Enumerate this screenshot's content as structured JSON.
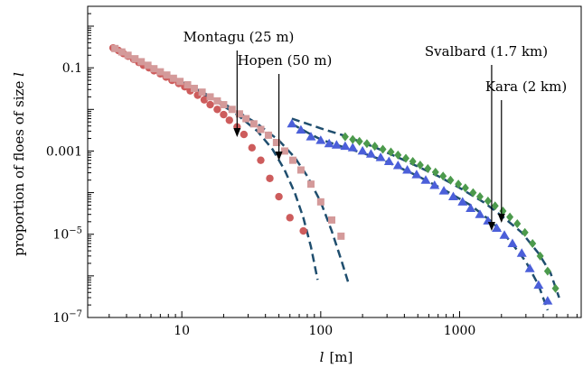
{
  "chart_data": {
    "type": "scatter",
    "xlabel_main": "l",
    "xlabel_unit": "[m]",
    "ylabel_main": "proportion of floes of size ",
    "ylabel_var": "l",
    "xscale": "log",
    "yscale": "log",
    "xlim": [
      2.1,
      7500
    ],
    "ylim": [
      1e-07,
      3
    ],
    "x_ticks": [
      {
        "value": 10,
        "label": "10"
      },
      {
        "value": 100,
        "label": "100"
      },
      {
        "value": 1000,
        "label": "1000"
      }
    ],
    "y_ticks": [
      {
        "value": 0.1,
        "label": "0.1"
      },
      {
        "value": 0.001,
        "label": "0.001"
      },
      {
        "value": 1e-05,
        "label": "10",
        "sup": "−5"
      },
      {
        "value": 1e-07,
        "label": "10",
        "sup": "−7"
      }
    ],
    "series": [
      {
        "name": "Montagu",
        "marker": "circle",
        "color": "#cd5c5c",
        "points": [
          [
            3.2,
            0.3
          ],
          [
            3.5,
            0.26
          ],
          [
            3.8,
            0.22
          ],
          [
            4.1,
            0.19
          ],
          [
            4.5,
            0.16
          ],
          [
            4.9,
            0.135
          ],
          [
            5.3,
            0.115
          ],
          [
            5.8,
            0.1
          ],
          [
            6.3,
            0.085
          ],
          [
            7,
            0.072
          ],
          [
            7.7,
            0.06
          ],
          [
            8.5,
            0.05
          ],
          [
            9.5,
            0.042
          ],
          [
            10.5,
            0.035
          ],
          [
            11.5,
            0.028
          ],
          [
            13,
            0.022
          ],
          [
            14.5,
            0.017
          ],
          [
            16,
            0.013
          ],
          [
            18,
            0.01
          ],
          [
            20,
            0.0075
          ],
          [
            22,
            0.0055
          ],
          [
            25,
            0.0038
          ],
          [
            28,
            0.0025
          ],
          [
            32,
            0.0012
          ],
          [
            37,
            0.0006
          ],
          [
            43,
            0.00022
          ],
          [
            50,
            8e-05
          ],
          [
            60,
            2.5e-05
          ],
          [
            75,
            1.2e-05
          ]
        ]
      },
      {
        "name": "Hopen",
        "marker": "square",
        "color": "#d49a9a",
        "points": [
          [
            3.3,
            0.29
          ],
          [
            3.7,
            0.24
          ],
          [
            4.1,
            0.2
          ],
          [
            4.6,
            0.165
          ],
          [
            5.1,
            0.14
          ],
          [
            5.7,
            0.115
          ],
          [
            6.3,
            0.095
          ],
          [
            7,
            0.08
          ],
          [
            7.8,
            0.067
          ],
          [
            8.7,
            0.056
          ],
          [
            9.7,
            0.047
          ],
          [
            11,
            0.039
          ],
          [
            12.3,
            0.032
          ],
          [
            14,
            0.026
          ],
          [
            16,
            0.02
          ],
          [
            18,
            0.016
          ],
          [
            20,
            0.013
          ],
          [
            23,
            0.01
          ],
          [
            26,
            0.0078
          ],
          [
            29,
            0.006
          ],
          [
            33,
            0.0045
          ],
          [
            37,
            0.0033
          ],
          [
            42,
            0.0024
          ],
          [
            48,
            0.0016
          ],
          [
            55,
            0.001
          ],
          [
            63,
            0.0006
          ],
          [
            72,
            0.00035
          ],
          [
            85,
            0.00016
          ],
          [
            100,
            6e-05
          ],
          [
            120,
            2.2e-05
          ],
          [
            140,
            9e-06
          ]
        ]
      },
      {
        "name": "Svalbard",
        "marker": "triangle",
        "color": "#4b5fd9",
        "points": [
          [
            62,
            0.0045
          ],
          [
            72,
            0.0032
          ],
          [
            85,
            0.0022
          ],
          [
            100,
            0.0018
          ],
          [
            115,
            0.0015
          ],
          [
            130,
            0.0014
          ],
          [
            150,
            0.0013
          ],
          [
            170,
            0.0012
          ],
          [
            200,
            0.001
          ],
          [
            230,
            0.00085
          ],
          [
            270,
            0.0007
          ],
          [
            310,
            0.00056
          ],
          [
            360,
            0.00045
          ],
          [
            420,
            0.00035
          ],
          [
            490,
            0.00027
          ],
          [
            570,
            0.0002
          ],
          [
            660,
            0.00015
          ],
          [
            770,
            0.00011
          ],
          [
            900,
            8e-05
          ],
          [
            1050,
            6e-05
          ],
          [
            1200,
            4.2e-05
          ],
          [
            1400,
            3e-05
          ],
          [
            1600,
            2.1e-05
          ],
          [
            1850,
            1.4e-05
          ],
          [
            2100,
            9.5e-06
          ],
          [
            2400,
            6e-06
          ],
          [
            2800,
            3.5e-06
          ],
          [
            3200,
            1.5e-06
          ],
          [
            3700,
            6e-07
          ],
          [
            4300,
            2.5e-07
          ]
        ]
      },
      {
        "name": "Kara",
        "marker": "diamond",
        "color": "#4c9a4c",
        "points": [
          [
            150,
            0.0022
          ],
          [
            170,
            0.0019
          ],
          [
            190,
            0.0017
          ],
          [
            215,
            0.0015
          ],
          [
            245,
            0.0013
          ],
          [
            280,
            0.0011
          ],
          [
            320,
            0.00095
          ],
          [
            360,
            0.0008
          ],
          [
            410,
            0.00067
          ],
          [
            460,
            0.00056
          ],
          [
            520,
            0.00046
          ],
          [
            590,
            0.00038
          ],
          [
            670,
            0.00031
          ],
          [
            760,
            0.00025
          ],
          [
            860,
            0.0002
          ],
          [
            980,
            0.00016
          ],
          [
            1100,
            0.00013
          ],
          [
            1250,
            0.0001
          ],
          [
            1400,
            8e-05
          ],
          [
            1600,
            6.3e-05
          ],
          [
            1800,
            4.8e-05
          ],
          [
            2050,
            3.6e-05
          ],
          [
            2300,
            2.6e-05
          ],
          [
            2600,
            1.8e-05
          ],
          [
            2950,
            1.1e-05
          ],
          [
            3350,
            6e-06
          ],
          [
            3800,
            3e-06
          ],
          [
            4300,
            1.3e-06
          ],
          [
            4900,
            5e-07
          ]
        ]
      }
    ],
    "fits": [
      {
        "color": "#1f4e6e",
        "points": [
          [
            3.2,
            0.3
          ],
          [
            5,
            0.14
          ],
          [
            8,
            0.062
          ],
          [
            12,
            0.032
          ],
          [
            18,
            0.015
          ],
          [
            25,
            0.0075
          ],
          [
            35,
            0.003
          ],
          [
            45,
            0.0011
          ],
          [
            55,
            0.00035
          ],
          [
            65,
            0.0001
          ],
          [
            75,
            2.5e-05
          ],
          [
            85,
            5e-06
          ],
          [
            95,
            8e-07
          ]
        ]
      },
      {
        "color": "#1f4e6e",
        "points": [
          [
            3.2,
            0.3
          ],
          [
            5,
            0.14
          ],
          [
            8,
            0.064
          ],
          [
            12,
            0.034
          ],
          [
            18,
            0.017
          ],
          [
            25,
            0.009
          ],
          [
            35,
            0.0045
          ],
          [
            50,
            0.0018
          ],
          [
            65,
            0.0007
          ],
          [
            80,
            0.00025
          ],
          [
            100,
            6e-05
          ],
          [
            120,
            1.2e-05
          ],
          [
            140,
            2.5e-06
          ],
          [
            160,
            6e-07
          ]
        ]
      },
      {
        "color": "#1f4e6e",
        "points": [
          [
            62,
            0.0045
          ],
          [
            80,
            0.0028
          ],
          [
            100,
            0.0019
          ],
          [
            150,
            0.0012
          ],
          [
            200,
            0.0009
          ],
          [
            300,
            0.00055
          ],
          [
            500,
            0.00025
          ],
          [
            800,
            0.00011
          ],
          [
            1200,
            5e-05
          ],
          [
            1700,
            2e-05
          ],
          [
            2300,
            7e-06
          ],
          [
            3000,
            2.2e-06
          ],
          [
            3700,
            6e-07
          ],
          [
            4300,
            1.5e-07
          ]
        ]
      },
      {
        "color": "#1f4e6e",
        "points": [
          [
            62,
            0.006
          ],
          [
            100,
            0.0035
          ],
          [
            150,
            0.0023
          ],
          [
            250,
            0.0012
          ],
          [
            400,
            0.0006
          ],
          [
            700,
            0.00025
          ],
          [
            1000,
            0.00013
          ],
          [
            1500,
            5.8e-05
          ],
          [
            2000,
            2.8e-05
          ],
          [
            2800,
            1.1e-05
          ],
          [
            3700,
            3.5e-06
          ],
          [
            4500,
            1.2e-06
          ],
          [
            5200,
            3e-07
          ]
        ]
      }
    ],
    "annotations": [
      {
        "text": "Montagu (25 m)",
        "x": 25
      },
      {
        "text": "Hopen (50 m)",
        "x": 50
      },
      {
        "text": "Svalbard (1.7 km)",
        "x": 1700
      },
      {
        "text": "Kara (2 km)",
        "x": 2000
      }
    ]
  }
}
